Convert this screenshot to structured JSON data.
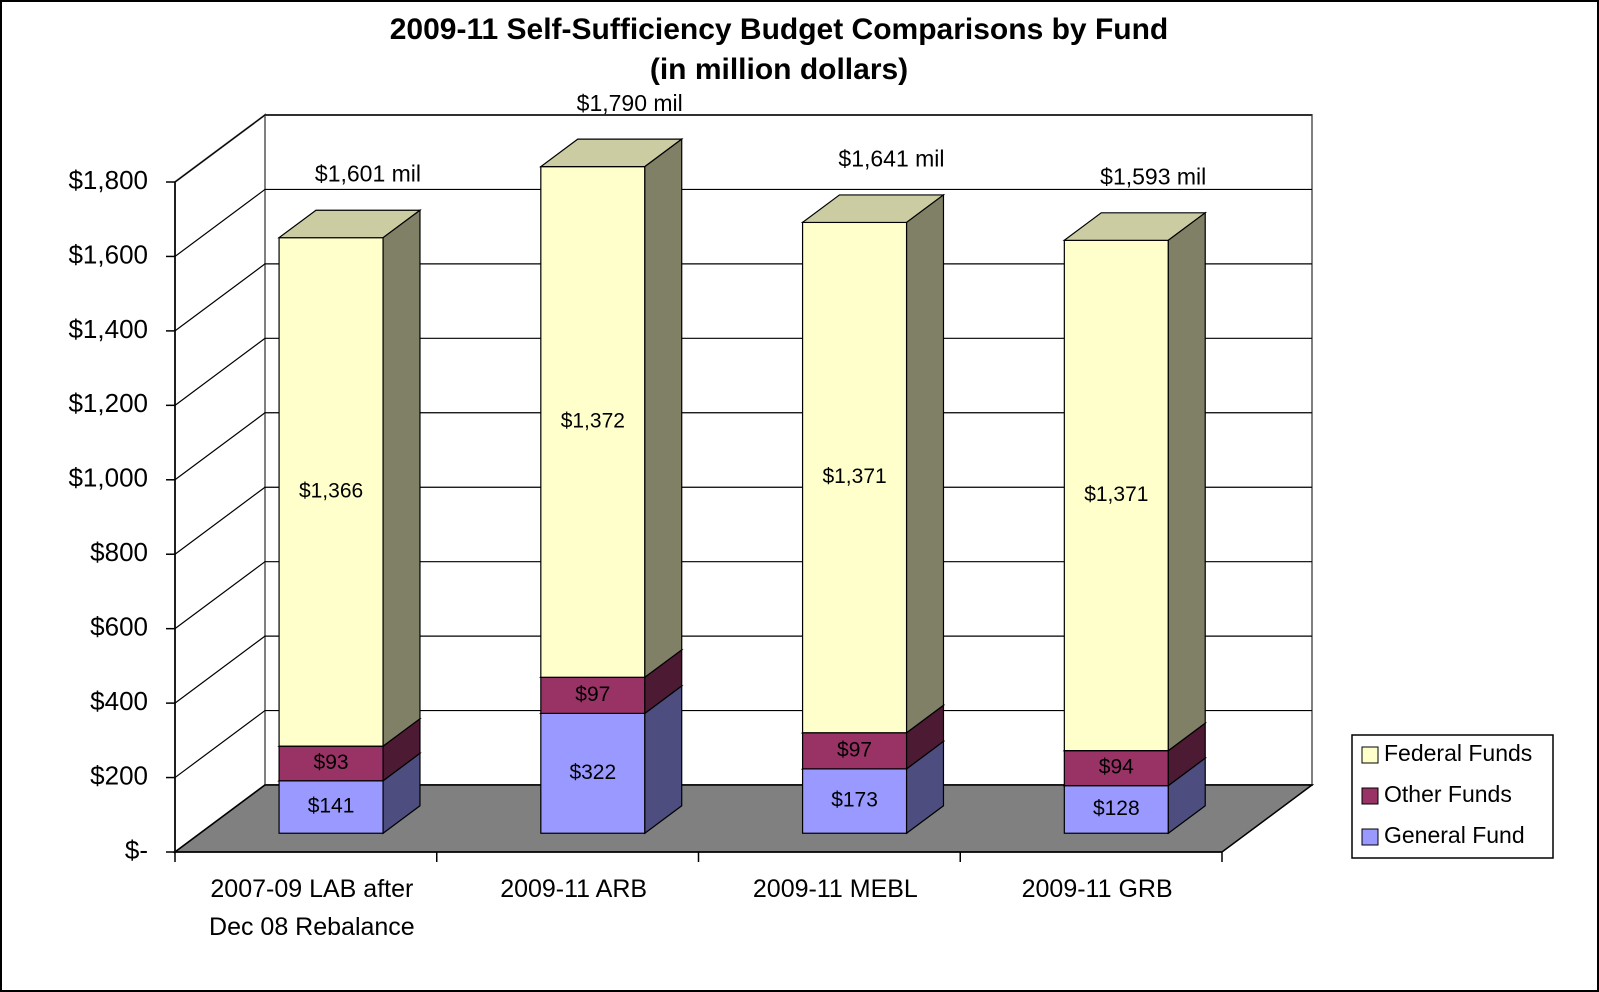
{
  "chart_data": {
    "type": "bar3d_stacked",
    "title": "2009-11 Self-Sufficiency Budget Comparisons by Fund",
    "subtitle": "(in million dollars)",
    "categories": [
      "2007-09 LAB after Dec 08 Rebalance",
      "2009-11 ARB",
      "2009-11 MEBL",
      "2009-11 GRB"
    ],
    "series": [
      {
        "name": "General Fund",
        "color": "#9999ff",
        "values": [
          141,
          322,
          173,
          128
        ],
        "value_labels": [
          "$141",
          "$322",
          "$173",
          "$128"
        ]
      },
      {
        "name": "Other Funds",
        "color": "#993366",
        "values": [
          93,
          97,
          97,
          94
        ],
        "value_labels": [
          "$93",
          "$97",
          "$97",
          "$94"
        ]
      },
      {
        "name": "Federal Funds",
        "color": "#ffffcc",
        "values": [
          1366,
          1372,
          1371,
          1371
        ],
        "value_labels": [
          "$1,366",
          "$1,372",
          "$1,371",
          "$1,371"
        ]
      }
    ],
    "totals": {
      "values": [
        1601,
        1790,
        1641,
        1593
      ],
      "value_labels": [
        "$1,601 mil",
        "$1,790 mil",
        "$1,641 mil",
        "$1,593 mil"
      ]
    },
    "ylim": [
      0,
      1800
    ],
    "yticks": [
      {
        "value": 0,
        "label": "$-"
      },
      {
        "value": 200,
        "label": "$200"
      },
      {
        "value": 400,
        "label": "$400"
      },
      {
        "value": 600,
        "label": "$600"
      },
      {
        "value": 800,
        "label": "$800"
      },
      {
        "value": 1000,
        "label": "$1,000"
      },
      {
        "value": 1200,
        "label": "$1,200"
      },
      {
        "value": 1400,
        "label": "$1,400"
      },
      {
        "value": 1600,
        "label": "$1,600"
      },
      {
        "value": 1800,
        "label": "$1,800"
      }
    ],
    "grid": true,
    "legend": "right",
    "stacked": true
  }
}
